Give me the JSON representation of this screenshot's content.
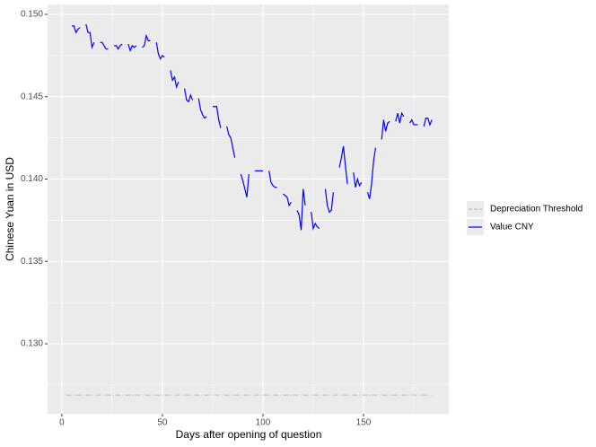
{
  "chart_data": {
    "type": "line",
    "x_label": "Days after opening of question",
    "y_label": "Chinese Yuan in USD",
    "xlim": [
      -7.1,
      192.4
    ],
    "ylim": [
      0.12575,
      0.1506
    ],
    "xticks": [
      0,
      50,
      100,
      150
    ],
    "yticks": [
      {
        "value": 0.13,
        "label": "0.130"
      },
      {
        "value": 0.135,
        "label": "0.135"
      },
      {
        "value": 0.14,
        "label": "0.140"
      },
      {
        "value": 0.145,
        "label": "0.145"
      },
      {
        "value": 0.15,
        "label": "0.150"
      }
    ],
    "minor_xticks": [
      25,
      75,
      125,
      175
    ],
    "minor_yticks": [
      0.1275,
      0.1325,
      0.1375,
      0.1425,
      0.1475
    ],
    "grid": true,
    "legend": "right",
    "series": [
      {
        "name": "Depreciation Threshold",
        "color": "#c0c0c0",
        "dash": true,
        "x": [
          2,
          184
        ],
        "values": [
          0.12689,
          0.12689
        ]
      },
      {
        "name": "Value CNY",
        "color": "#0000ff",
        "x": [
          5,
          6,
          7,
          8,
          9,
          10,
          12,
          13,
          14,
          15,
          16,
          17,
          19,
          20,
          21,
          22,
          23,
          24,
          26,
          27,
          28,
          29,
          30,
          31,
          33,
          34,
          35,
          36,
          37,
          38,
          40,
          41,
          42,
          43,
          44,
          45,
          47,
          48,
          49,
          50,
          51,
          52,
          54,
          55,
          56,
          57,
          58,
          59,
          61,
          62,
          63,
          64,
          65,
          66,
          68,
          69,
          70,
          71,
          72,
          73,
          75,
          76,
          77,
          78,
          79,
          80,
          82,
          83,
          84,
          85,
          86,
          87,
          89,
          90,
          91,
          92,
          93,
          94,
          96,
          97,
          98,
          99,
          100,
          101,
          103,
          104,
          105,
          106,
          107,
          108,
          110,
          111,
          112,
          113,
          114,
          115,
          117,
          118,
          119,
          120,
          121,
          122,
          124,
          125,
          126,
          127,
          128,
          129,
          131,
          132,
          133,
          134,
          135,
          136,
          138,
          139,
          140,
          141,
          142,
          143,
          145,
          146,
          147,
          148,
          149,
          150,
          152,
          153,
          154,
          155,
          156,
          157,
          159,
          160,
          161,
          162,
          163,
          164,
          166,
          167,
          168,
          169,
          170,
          171,
          173,
          174,
          175,
          176,
          177,
          178,
          180,
          181,
          182,
          183,
          184
        ],
        "values": [
          0.1493,
          0.1493,
          0.1489,
          0.1491,
          0.1492,
          null,
          0.1494,
          0.1489,
          0.1489,
          0.148,
          0.1483,
          null,
          0.1483,
          0.1483,
          0.1481,
          0.1479,
          0.1479,
          null,
          0.1481,
          0.1481,
          0.1479,
          0.1481,
          0.1482,
          null,
          0.1482,
          0.1478,
          0.1481,
          0.148,
          0.1481,
          null,
          0.148,
          0.1481,
          0.1487,
          0.1484,
          0.1484,
          null,
          0.1483,
          0.1476,
          0.1473,
          0.1475,
          0.1474,
          null,
          0.1466,
          0.146,
          0.1462,
          0.1456,
          0.1459,
          null,
          0.1455,
          0.1448,
          0.1447,
          0.1451,
          0.1448,
          null,
          0.1449,
          0.1442,
          0.1439,
          0.1437,
          0.1438,
          null,
          0.1444,
          0.1444,
          0.1444,
          0.1436,
          0.1431,
          null,
          0.1432,
          0.1427,
          0.1425,
          0.1419,
          0.1413,
          null,
          0.1403,
          0.1399,
          0.1394,
          0.1389,
          0.1403,
          null,
          0.1405,
          0.1405,
          0.1405,
          0.1405,
          0.1405,
          null,
          0.1405,
          0.1398,
          0.1396,
          0.1395,
          0.1395,
          null,
          0.1391,
          0.139,
          0.1389,
          0.1384,
          0.1386,
          null,
          0.1381,
          0.1378,
          0.1369,
          0.1394,
          0.1384,
          null,
          0.138,
          0.137,
          0.1373,
          0.1371,
          0.137,
          null,
          0.1394,
          0.1384,
          0.138,
          0.1381,
          0.1392,
          null,
          0.1407,
          0.1413,
          0.142,
          0.1408,
          0.1397,
          null,
          0.1404,
          0.1395,
          0.14,
          0.1396,
          0.1398,
          null,
          0.1392,
          0.1388,
          0.1397,
          0.1411,
          0.1419,
          null,
          0.1424,
          0.1436,
          0.1429,
          0.1434,
          0.1435,
          null,
          0.1435,
          0.144,
          0.1434,
          0.144,
          0.1438,
          null,
          0.1434,
          0.1436,
          0.1433,
          0.1433,
          0.1433,
          null,
          0.1432,
          0.1437,
          0.1437,
          0.1433,
          0.1436
        ]
      }
    ]
  }
}
